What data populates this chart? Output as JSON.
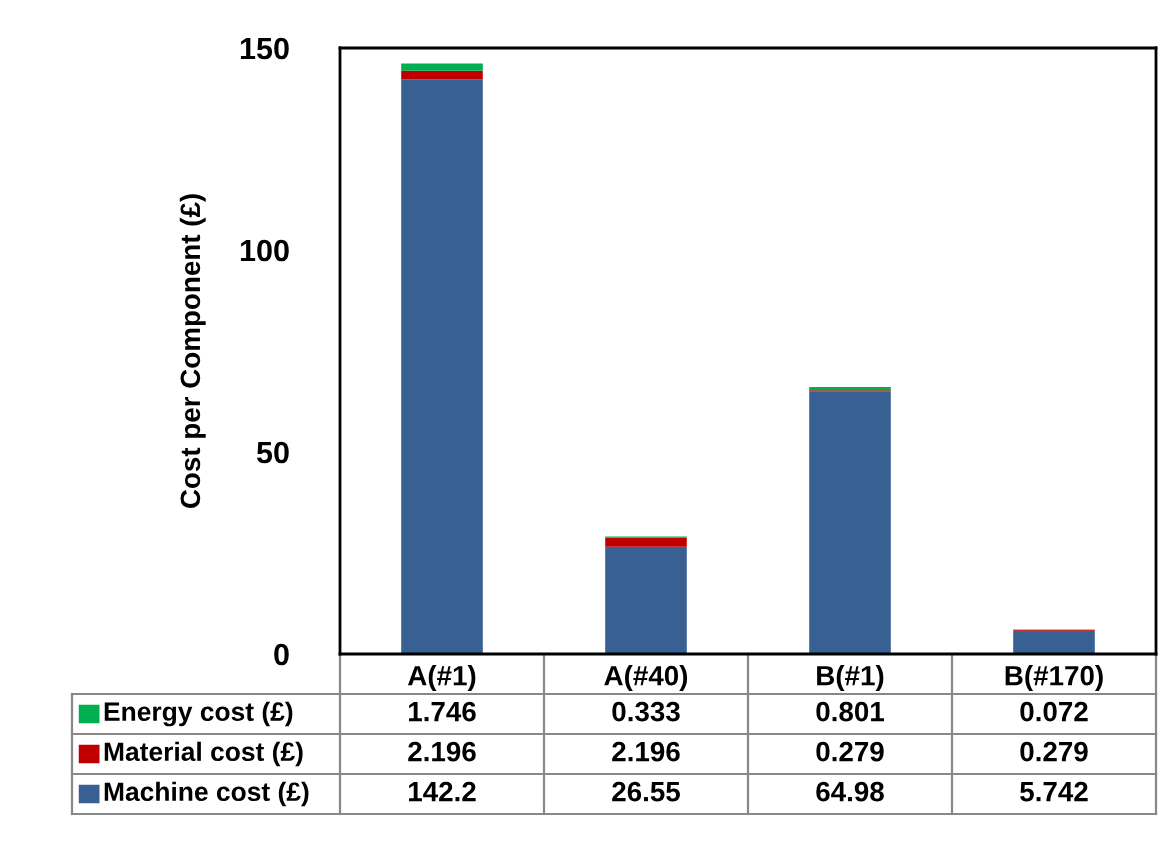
{
  "chart_data": {
    "type": "bar",
    "stacked": true,
    "ylabel": "Cost per Component (£)",
    "categories": [
      "A(#1)",
      "A(#40)",
      "B(#1)",
      "B(#170)"
    ],
    "series": [
      {
        "name": "Machine cost (£)",
        "color": "#386092",
        "values": [
          142.2,
          26.55,
          64.98,
          5.742
        ]
      },
      {
        "name": "Material cost (£)",
        "color": "#c00000",
        "values": [
          2.196,
          2.196,
          0.279,
          0.279
        ]
      },
      {
        "name": "Energy cost (£)",
        "color": "#00b050",
        "values": [
          1.746,
          0.333,
          0.801,
          0.072
        ]
      }
    ],
    "ylim": [
      0,
      150
    ],
    "yticks": [
      0,
      50,
      100,
      150
    ],
    "grid": false,
    "legend": "bottom",
    "data_labels": true
  }
}
